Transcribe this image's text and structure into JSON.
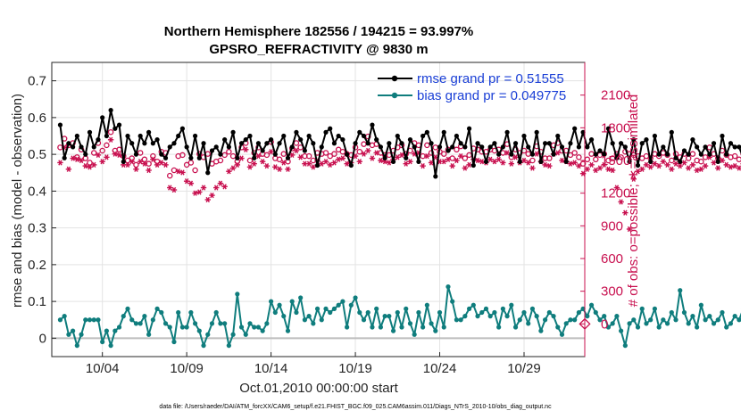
{
  "chart_data": {
    "type": "line",
    "title": "Northern Hemisphere 182556 / 194215 = 93.997%",
    "subtitle": "GPSRO_REFRACTIVITY @ 9830 m",
    "xlabel": "Oct.01,2010 00:00:00 start",
    "ylabel": "rmse and bias (model - observation)",
    "ylabel_right": "# of obs: o=possible; ∗=assimilated",
    "xlim": [
      0,
      31.6
    ],
    "ylim": [
      -0.05,
      0.75
    ],
    "ylim_right": [
      -300,
      2400
    ],
    "x_ticks": [
      3,
      8,
      13,
      18,
      23,
      28
    ],
    "x_tick_labels": [
      "10/04",
      "10/09",
      "10/14",
      "10/19",
      "10/24",
      "10/29"
    ],
    "y_ticks": [
      0,
      0.1,
      0.2,
      0.3,
      0.4,
      0.5,
      0.6,
      0.7
    ],
    "y_tick_labels": [
      "0",
      "0.1",
      "0.2",
      "0.3",
      "0.4",
      "0.5",
      "0.6",
      "0.7"
    ],
    "y_ticks_right": [
      0,
      300,
      600,
      900,
      1200,
      1500,
      1800,
      2100
    ],
    "y_tick_labels_right": [
      "0",
      "300",
      "600",
      "900",
      "1200",
      "1500",
      "1800",
      "2100"
    ],
    "grid": true,
    "legend_position": "top-right",
    "x_step_days": 0.25,
    "series": [
      {
        "name": "rmse grand pr = 0.51555",
        "axis": "left",
        "color": "#000000",
        "values": [
          0.58,
          0.49,
          0.53,
          0.52,
          0.55,
          0.52,
          0.5,
          0.56,
          0.52,
          0.54,
          0.6,
          0.55,
          0.62,
          0.57,
          0.58,
          0.48,
          0.55,
          0.53,
          0.5,
          0.55,
          0.53,
          0.56,
          0.53,
          0.54,
          0.5,
          0.49,
          0.52,
          0.53,
          0.55,
          0.57,
          0.52,
          0.49,
          0.55,
          0.49,
          0.53,
          0.45,
          0.51,
          0.52,
          0.5,
          0.54,
          0.52,
          0.56,
          0.49,
          0.53,
          0.54,
          0.55,
          0.49,
          0.53,
          0.51,
          0.53,
          0.54,
          0.5,
          0.53,
          0.55,
          0.49,
          0.52,
          0.56,
          0.54,
          0.51,
          0.55,
          0.53,
          0.47,
          0.52,
          0.56,
          0.57,
          0.53,
          0.55,
          0.54,
          0.5,
          0.47,
          0.53,
          0.56,
          0.55,
          0.53,
          0.58,
          0.54,
          0.52,
          0.49,
          0.53,
          0.48,
          0.55,
          0.53,
          0.49,
          0.54,
          0.52,
          0.48,
          0.55,
          0.56,
          0.53,
          0.44,
          0.52,
          0.56,
          0.51,
          0.52,
          0.55,
          0.53,
          0.52,
          0.57,
          0.47,
          0.53,
          0.52,
          0.48,
          0.52,
          0.53,
          0.5,
          0.52,
          0.56,
          0.5,
          0.53,
          0.48,
          0.55,
          0.52,
          0.5,
          0.56,
          0.48,
          0.53,
          0.53,
          0.5,
          0.55,
          0.52,
          0.48,
          0.53,
          0.57,
          0.52,
          0.56,
          0.52,
          0.54,
          0.5,
          0.51,
          0.5,
          0.57,
          0.53,
          0.49,
          0.53,
          0.52,
          0.48,
          0.54,
          0.47,
          0.53,
          0.54,
          0.48,
          0.55,
          0.5,
          0.52,
          0.5,
          0.56,
          0.49,
          0.48,
          0.51,
          0.5,
          0.54,
          0.52,
          0.5,
          0.52,
          0.5,
          0.53,
          0.48,
          0.55,
          0.5,
          0.53,
          0.52,
          0.52,
          0.49,
          0.55,
          0.52,
          0.51,
          0.54,
          0.48,
          0.55,
          0.53,
          0.5,
          0.54,
          0.51,
          0.52,
          0.47,
          0.5,
          0.53,
          0.48,
          0.55,
          0.51,
          0.52,
          0.48,
          0.54,
          0.55,
          0.53,
          0.54,
          0.51,
          0.53,
          0.49,
          0.55,
          0.51,
          0.53,
          0.48,
          0.52,
          0.54,
          0.49,
          0.53,
          0.5,
          0.55,
          0.52,
          0.48,
          0.51,
          0.53,
          0.49,
          0.52,
          0.54,
          0.5,
          0.53,
          0.52,
          0.49,
          0.53,
          0.51,
          0.52,
          0.48,
          0.54,
          0.49,
          0.52,
          0.53,
          0.51,
          0.48,
          0.55,
          0.53,
          0.52,
          0.5,
          0.47,
          0.53,
          0.5,
          0.52,
          0.49,
          0.51,
          0.53,
          0.5,
          0.54,
          0.49,
          0.53,
          0.52,
          0.51,
          0.5,
          0.54,
          0.52,
          0.48,
          0.53,
          0.5,
          0.46,
          0.49,
          0.53,
          0.51,
          0.53,
          0.52,
          0.54,
          0.53,
          0.54
        ]
      },
      {
        "name": "bias grand pr = 0.049775",
        "axis": "left",
        "color": "#0f7d7d",
        "values": [
          0.05,
          0.06,
          0.01,
          0.02,
          -0.02,
          0.01,
          0.05,
          0.05,
          0.05,
          0.05,
          -0.01,
          0.02,
          -0.02,
          0.02,
          0.03,
          0.06,
          0.08,
          0.05,
          0.04,
          0.04,
          0.06,
          0.01,
          0.05,
          0.08,
          0.07,
          0.04,
          0.03,
          -0.01,
          0.07,
          0.03,
          0.03,
          0.07,
          0.04,
          0.02,
          -0.02,
          0.01,
          0.04,
          0.07,
          0.04,
          0.04,
          -0.02,
          0.01,
          0.12,
          0.03,
          0.01,
          0.04,
          0.03,
          0.03,
          0.02,
          0.04,
          0.1,
          0.07,
          0.09,
          0.06,
          0.02,
          0.1,
          0.07,
          0.11,
          0.05,
          0.06,
          0.04,
          0.08,
          0.05,
          0.08,
          0.07,
          0.08,
          0.09,
          0.1,
          0.03,
          0.09,
          0.11,
          0.07,
          0.05,
          0.07,
          0.03,
          0.08,
          0.03,
          0.06,
          0.06,
          0.02,
          0.07,
          0.03,
          0.08,
          0.04,
          0.01,
          0.07,
          0.03,
          0.09,
          0.04,
          0.02,
          0.07,
          0.03,
          0.14,
          0.1,
          0.05,
          0.05,
          0.06,
          0.08,
          0.09,
          0.06,
          0.07,
          0.08,
          0.06,
          0.07,
          0.03,
          0.08,
          0.06,
          0.09,
          0.03,
          0.05,
          0.07,
          0.04,
          0.08,
          0.06,
          0.02,
          0.05,
          0.07,
          0.06,
          0.03,
          0.01,
          0.04,
          0.05,
          0.05,
          0.07,
          0.08,
          0.06,
          0.09,
          0.07,
          0.05,
          0.06,
          0.03,
          0.04,
          0.06,
          0.02,
          -0.02,
          0.04,
          0.05,
          0.03,
          0.08,
          0.04,
          0.05,
          0.08,
          0.03,
          0.05,
          0.04,
          0.07,
          0.05,
          0.13,
          0.07,
          0.04,
          0.06,
          0.03,
          0.09,
          0.05,
          0.06,
          0.04,
          0.05,
          0.07,
          0.03,
          0.04,
          0.06,
          0.05,
          0.08,
          0.06,
          0.04,
          0.07,
          0.09,
          0.05,
          0.03,
          0.04,
          0.08,
          0.05,
          0.08,
          0.03,
          0.06,
          0.05,
          0.07,
          0.1,
          0.07,
          0.11,
          0.05,
          0.06,
          0.04,
          -0.01,
          0.07,
          0.05,
          0.08,
          0.06,
          0.03,
          0.04,
          0.05,
          0.09,
          0.04,
          0.06,
          0.1,
          0.05,
          0.06,
          0.07,
          0.03,
          0.04,
          0.05,
          0.04,
          0.02,
          0.02,
          0.04,
          0.05,
          0.04,
          0.02,
          0.06,
          0.05,
          0.03,
          0.04,
          0.1,
          0.06,
          0.03,
          0.04,
          0.09,
          0.05,
          0.04,
          0.02,
          0.05,
          0.06,
          0.03,
          0.04,
          0.05,
          0.03,
          0.02,
          0.04,
          0.06,
          0.05,
          0.07,
          0.03,
          0.07,
          0.06,
          0.05,
          0.08,
          0.02,
          0.03,
          0.02,
          0.04,
          0.06,
          0.14,
          0.05,
          0.06,
          0.06
        ]
      },
      {
        "name": "possible obs",
        "axis": "right",
        "marker": "o",
        "color": "#c8104f",
        "values": [
          1620,
          1700,
          1640,
          1660,
          1530,
          1600,
          1520,
          1480,
          1570,
          1660,
          1590,
          1640,
          1760,
          1590,
          1600,
          1540,
          1500,
          1520,
          1460,
          1570,
          1510,
          1470,
          1540,
          1490,
          1580,
          1570,
          1360,
          1410,
          1540,
          1550,
          1460,
          1480,
          1410,
          1560,
          1530,
          1560,
          1470,
          1490,
          1500,
          1550,
          1580,
          1540,
          1490,
          1620,
          1660,
          1500,
          1570,
          1620,
          1560,
          1550,
          1670,
          1520,
          1510,
          1560,
          1490,
          1610,
          1660,
          1620,
          1540,
          1540,
          1500,
          1570,
          1560,
          1570,
          1540,
          1560,
          1600,
          1580,
          1560,
          1550,
          1620,
          1580,
          1650,
          1720,
          1640,
          1650,
          1570,
          1550,
          1550,
          1590,
          1620,
          1640,
          1560,
          1590,
          1660,
          1640,
          1540,
          1640,
          1570,
          1620,
          1580,
          1560,
          1600,
          1520,
          1600,
          1630,
          1520,
          1550,
          1610,
          1600,
          1580,
          1580,
          1600,
          1590,
          1600,
          1570,
          1650,
          1530,
          1600,
          1570,
          1590,
          1560,
          1500,
          1630,
          1580,
          1520,
          1520,
          1640,
          1660,
          1590,
          1590,
          1550,
          1570,
          1530,
          1470,
          1510,
          1560,
          1510,
          1550,
          1560,
          1500,
          1520,
          1560,
          1530,
          1580,
          1560,
          1550,
          1540,
          1520,
          1540,
          1520,
          1560,
          1540,
          1570,
          1550,
          1500,
          1560,
          1530,
          1560,
          1520,
          1560,
          1500,
          1490,
          1530,
          1620,
          1560,
          1520,
          1590,
          1550,
          1530,
          1540,
          1510,
          1560,
          1580,
          1560,
          1540,
          1580,
          1550,
          1590,
          1530,
          1510,
          1560,
          1520,
          1560,
          1580,
          1550,
          1510,
          1560,
          1520,
          1490,
          1540,
          1580,
          1550,
          1520,
          1560,
          1530,
          1550,
          1510,
          1540,
          1560,
          1510,
          1570,
          1550,
          1520,
          1540,
          1580,
          1560,
          1530,
          1510,
          1550,
          1570,
          1540,
          1520,
          1560,
          1580,
          1540,
          1510,
          1520,
          1550,
          1570,
          1540,
          1520,
          1560,
          1530,
          1550,
          1510,
          1580,
          1540,
          1520,
          1560,
          1530,
          1500,
          1540,
          1560,
          1520,
          1550,
          1570,
          1510,
          1540,
          1560,
          1530,
          1550,
          1600,
          1520,
          1540,
          1560,
          1510,
          1550,
          1580,
          1640,
          1590,
          1680,
          1560,
          1520
        ]
      },
      {
        "name": "assimilated obs",
        "axis": "right",
        "marker": "*",
        "color": "#c8104f",
        "values": [
          1480,
          1620,
          1420,
          1520,
          1510,
          1500,
          1450,
          1440,
          1460,
          1550,
          1490,
          1530,
          1690,
          1560,
          1550,
          1460,
          1460,
          1490,
          1420,
          1490,
          1470,
          1410,
          1510,
          1460,
          1480,
          1460,
          1250,
          1230,
          1400,
          1390,
          1310,
          1290,
          1200,
          1210,
          1250,
          1140,
          1180,
          1250,
          1290,
          1260,
          1400,
          1430,
          1460,
          1520,
          1600,
          1440,
          1470,
          1540,
          1490,
          1450,
          1580,
          1440,
          1420,
          1480,
          1420,
          1550,
          1590,
          1530,
          1470,
          1470,
          1440,
          1500,
          1470,
          1490,
          1460,
          1480,
          1510,
          1520,
          1470,
          1480,
          1540,
          1490,
          1560,
          1590,
          1520,
          1570,
          1500,
          1490,
          1480,
          1510,
          1530,
          1550,
          1470,
          1490,
          1560,
          1570,
          1450,
          1540,
          1480,
          1530,
          1490,
          1490,
          1510,
          1450,
          1500,
          1540,
          1430,
          1460,
          1510,
          1500,
          1490,
          1480,
          1510,
          1490,
          1510,
          1480,
          1570,
          1470,
          1530,
          1480,
          1500,
          1480,
          1430,
          1560,
          1490,
          1460,
          1450,
          1560,
          1570,
          1500,
          1490,
          1470,
          1480,
          1450,
          1380,
          1420,
          1460,
          1410,
          1430,
          1460,
          1420,
          1410,
          1250,
          1120,
          1020,
          870,
          1330,
          1400,
          1420,
          1460,
          1440,
          1470,
          1450,
          1490,
          1460,
          1420,
          1470,
          1450,
          1480,
          1430,
          1460,
          1410,
          1420,
          1450,
          1530,
          1480,
          1430,
          1500,
          1460,
          1440,
          1450,
          1430,
          1470,
          1490,
          1460,
          1450,
          1490,
          1470,
          1500,
          1440,
          1420,
          1460,
          1430,
          1470,
          1500,
          1460,
          1420,
          1470,
          1430,
          1410,
          1460,
          1490,
          1460,
          1430,
          1470,
          1440,
          1460,
          1420,
          1450,
          1470,
          1420,
          1480,
          1460,
          1430,
          1450,
          1490,
          1470,
          1440,
          1420,
          1460,
          1480,
          1450,
          1430,
          1470,
          1490,
          1450,
          1420,
          1430,
          1460,
          1480,
          1450,
          1430,
          1470,
          1440,
          1460,
          1420,
          1490,
          1450,
          1430,
          1470,
          1440,
          1410,
          1450,
          1470,
          1430,
          1460,
          1480,
          1420,
          1450,
          1470,
          1440,
          1460,
          1510,
          1430,
          1450,
          1470,
          1420,
          1460,
          1490,
          1540,
          1500,
          1590,
          1470,
          1430
        ]
      }
    ],
    "annotations": [
      "data file: /Users/raeder/DAI/ATM_forcXX/CAM6_setup/f.e21.FHIST_BGC.f09_025.CAM6assim.011/Diags_NTrS_2010-10/obs_diag_output.nc"
    ]
  }
}
